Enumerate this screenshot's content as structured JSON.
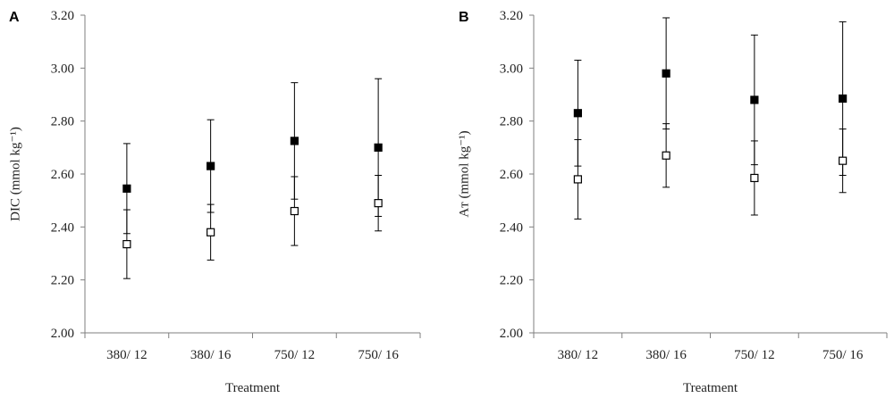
{
  "chart_data": [
    {
      "type": "scatter",
      "panel": "A",
      "xlabel": "Treatment",
      "ylabel": "DIC (mmol kg⁻¹)",
      "categories": [
        "380/ 12",
        "380/ 16",
        "750/ 12",
        "750/ 16"
      ],
      "ylim": [
        2.0,
        3.2
      ],
      "yticks": [
        "2.00",
        "2.20",
        "2.40",
        "2.60",
        "2.80",
        "3.00",
        "3.20"
      ],
      "grid": false,
      "series": [
        {
          "marker": "filled-square",
          "values": [
            2.545,
            2.63,
            2.725,
            2.7
          ],
          "error": [
            0.17,
            0.175,
            0.22,
            0.26
          ]
        },
        {
          "marker": "open-square",
          "values": [
            2.335,
            2.38,
            2.46,
            2.49
          ],
          "error": [
            0.13,
            0.105,
            0.13,
            0.105
          ]
        }
      ]
    },
    {
      "type": "scatter",
      "panel": "B",
      "xlabel": "Treatment",
      "ylabel": "Aᴛ (mmol kg⁻¹)",
      "categories": [
        "380/ 12",
        "380/ 16",
        "750/ 12",
        "750/ 16"
      ],
      "ylim": [
        2.0,
        3.2
      ],
      "yticks": [
        "2.00",
        "2.20",
        "2.40",
        "2.60",
        "2.80",
        "3.00",
        "3.20"
      ],
      "grid": false,
      "series": [
        {
          "marker": "filled-square",
          "values": [
            2.83,
            2.98,
            2.88,
            2.885
          ],
          "error": [
            0.2,
            0.21,
            0.245,
            0.29
          ]
        },
        {
          "marker": "open-square",
          "values": [
            2.58,
            2.67,
            2.585,
            2.65
          ],
          "error": [
            0.15,
            0.12,
            0.14,
            0.12
          ]
        }
      ]
    }
  ],
  "colors": {
    "axis": "#7f7f7f",
    "marker": "#000000",
    "text": "#222222"
  }
}
